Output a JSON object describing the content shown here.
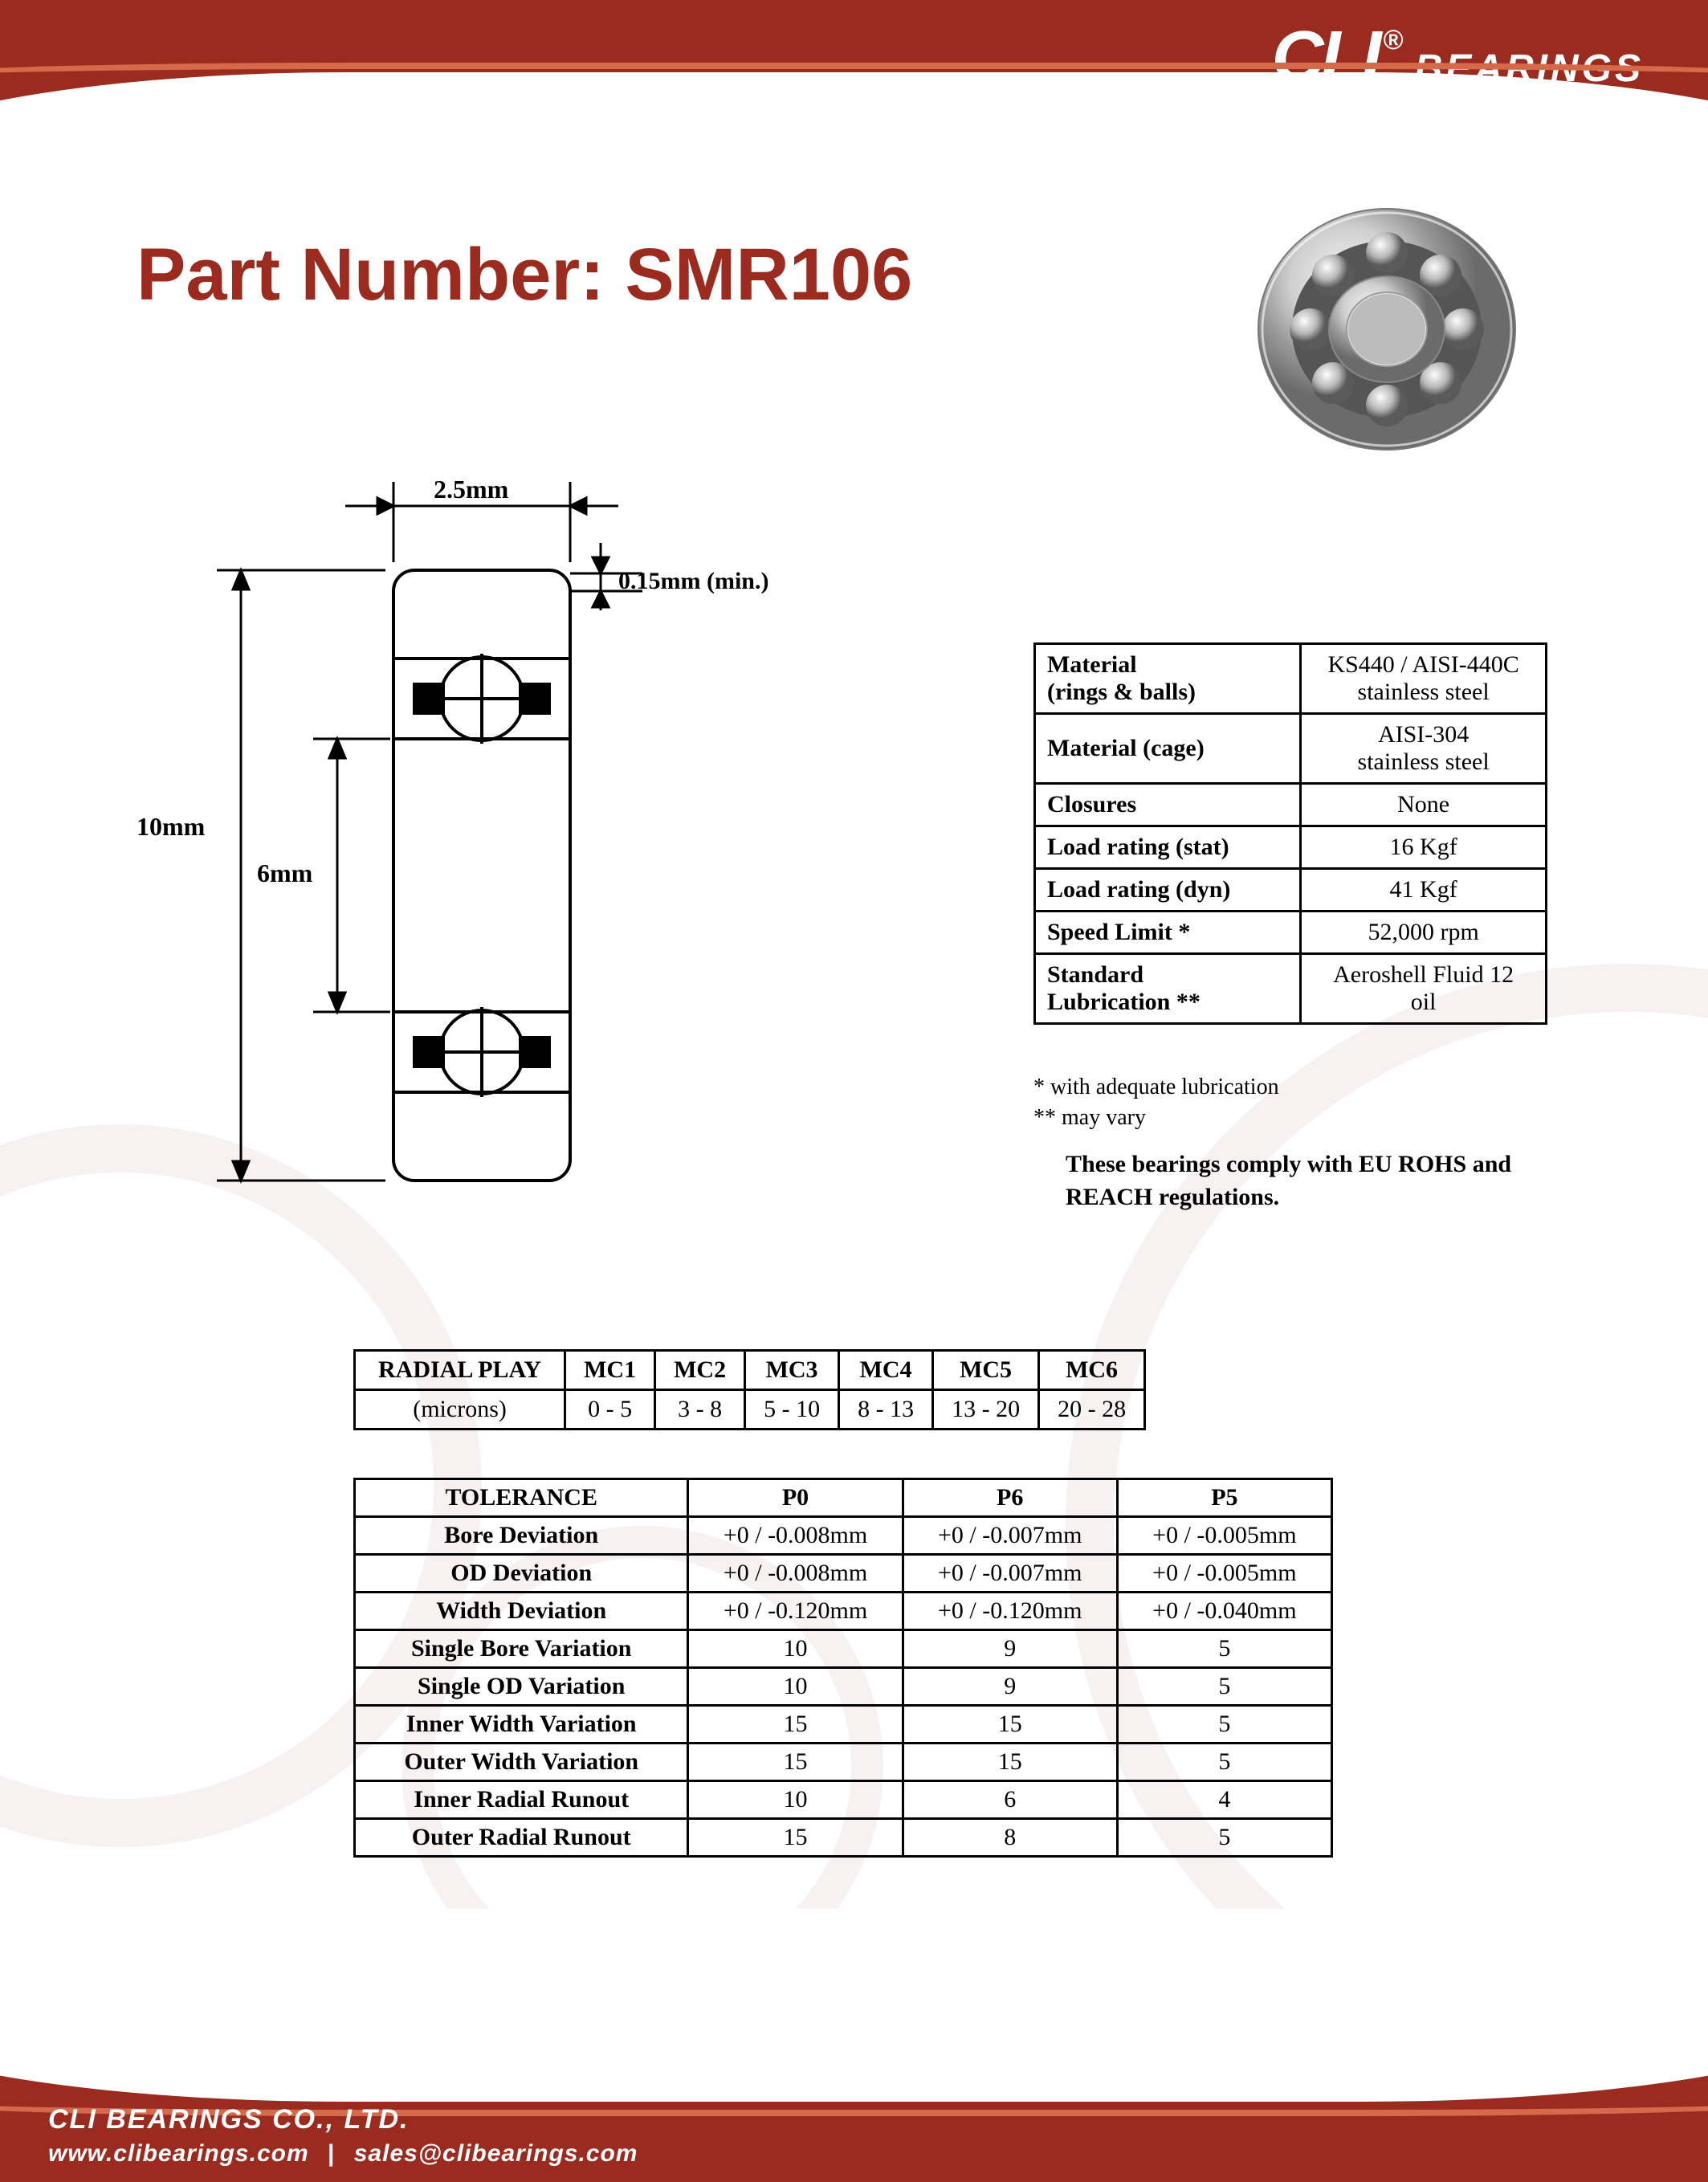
{
  "brand": {
    "name": "CLI",
    "registered": "®",
    "suffix": "BEARINGS",
    "accent_color": "#9c2b1f"
  },
  "title": {
    "label": "Part Number:",
    "value": "SMR106"
  },
  "drawing": {
    "width_label": "2.5mm",
    "chamfer_label": "0.15mm (min.)",
    "od_label": "10mm",
    "id_label": "6mm"
  },
  "specs": {
    "rows": [
      {
        "label": "Material\n(rings & balls)",
        "value": "KS440 / AISI-440C\nstainless steel"
      },
      {
        "label": "Material (cage)",
        "value": "AISI-304\nstainless steel"
      },
      {
        "label": "Closures",
        "value": "None"
      },
      {
        "label": "Load rating (stat)",
        "value": "16 Kgf"
      },
      {
        "label": "Load rating (dyn)",
        "value": "41 Kgf"
      },
      {
        "label": "Speed Limit *",
        "value": "52,000 rpm"
      },
      {
        "label": "Standard\nLubrication **",
        "value": "Aeroshell Fluid 12\noil"
      }
    ],
    "footnote1": "  * with adequate lubrication",
    "footnote2": "** may vary",
    "compliance": "These bearings comply with EU ROHS and REACH  regulations."
  },
  "radial_play": {
    "header": "RADIAL PLAY",
    "unit_label": "(microns)",
    "columns": [
      "MC1",
      "MC2",
      "MC3",
      "MC4",
      "MC5",
      "MC6"
    ],
    "values": [
      "0 - 5",
      "3 - 8",
      "5 - 10",
      "8 - 13",
      "13 - 20",
      "20 - 28"
    ]
  },
  "tolerance": {
    "header": "TOLERANCE",
    "columns": [
      "P0",
      "P6",
      "P5"
    ],
    "rows": [
      {
        "label": "Bore Deviation",
        "vals": [
          "+0 / -0.008mm",
          "+0 / -0.007mm",
          "+0 / -0.005mm"
        ]
      },
      {
        "label": "OD Deviation",
        "vals": [
          "+0 / -0.008mm",
          "+0 / -0.007mm",
          "+0 / -0.005mm"
        ]
      },
      {
        "label": "Width Deviation",
        "vals": [
          "+0 / -0.120mm",
          "+0 / -0.120mm",
          "+0 / -0.040mm"
        ]
      },
      {
        "label": "Single Bore Variation",
        "vals": [
          "10",
          "9",
          "5"
        ]
      },
      {
        "label": "Single OD Variation",
        "vals": [
          "10",
          "9",
          "5"
        ]
      },
      {
        "label": "Inner Width Variation",
        "vals": [
          "15",
          "15",
          "5"
        ]
      },
      {
        "label": "Outer Width Variation",
        "vals": [
          "15",
          "15",
          "5"
        ]
      },
      {
        "label": "Inner Radial Runout",
        "vals": [
          "10",
          "6",
          "4"
        ]
      },
      {
        "label": "Outer Radial Runout",
        "vals": [
          "15",
          "8",
          "5"
        ]
      }
    ]
  },
  "footer": {
    "company": "CLI BEARINGS CO., LTD.",
    "website": "www.clibearings.com",
    "separator": "|",
    "email": "sales@clibearings.com"
  }
}
